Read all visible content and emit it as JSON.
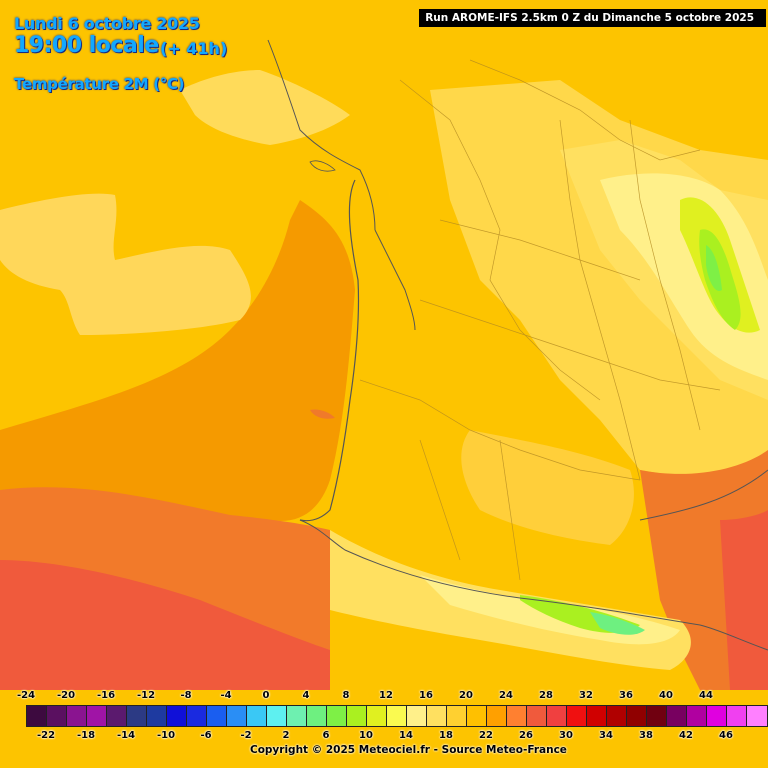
{
  "header": {
    "date": "Lundi 6 octobre 2025",
    "time": "19:00 locale",
    "offset": "(+ 41h)",
    "parameter": "Température 2M (°C)"
  },
  "run_info": "Run AROME-IFS 2.5km 0 Z du Dimanche 5 octobre 2025",
  "legend": {
    "top_labels": [
      "-24",
      "-20",
      "-16",
      "-12",
      "-8",
      "-4",
      "0",
      "4",
      "8",
      "12",
      "16",
      "20",
      "24",
      "28",
      "32",
      "36",
      "40",
      "44"
    ],
    "bottom_labels": [
      "-22",
      "-18",
      "-14",
      "-10",
      "-6",
      "-2",
      "2",
      "6",
      "10",
      "14",
      "18",
      "22",
      "26",
      "30",
      "34",
      "38",
      "42",
      "46"
    ],
    "colors": [
      "#3d0a3f",
      "#5a1060",
      "#8a1490",
      "#a014a6",
      "#5b1a6e",
      "#2c3a84",
      "#1e3aa0",
      "#1010d8",
      "#1a2ae0",
      "#1a5ef0",
      "#2a8ef5",
      "#3ac8f5",
      "#5ef0f0",
      "#6ef0b0",
      "#6ef080",
      "#7ef046",
      "#aaf020",
      "#e0f020",
      "#fafa50",
      "#fff08a",
      "#ffe060",
      "#ffd030",
      "#ffc000",
      "#ffa000",
      "#ff8030",
      "#f05a3c",
      "#f04040",
      "#f01010",
      "#d00000",
      "#b00000",
      "#900000",
      "#700010",
      "#780060",
      "#b000a0",
      "#e000e0",
      "#f040f0",
      "#ff80ff"
    ]
  },
  "copyright": "Copyright © 2025 Meteociel.fr - Source Meteo-France"
}
